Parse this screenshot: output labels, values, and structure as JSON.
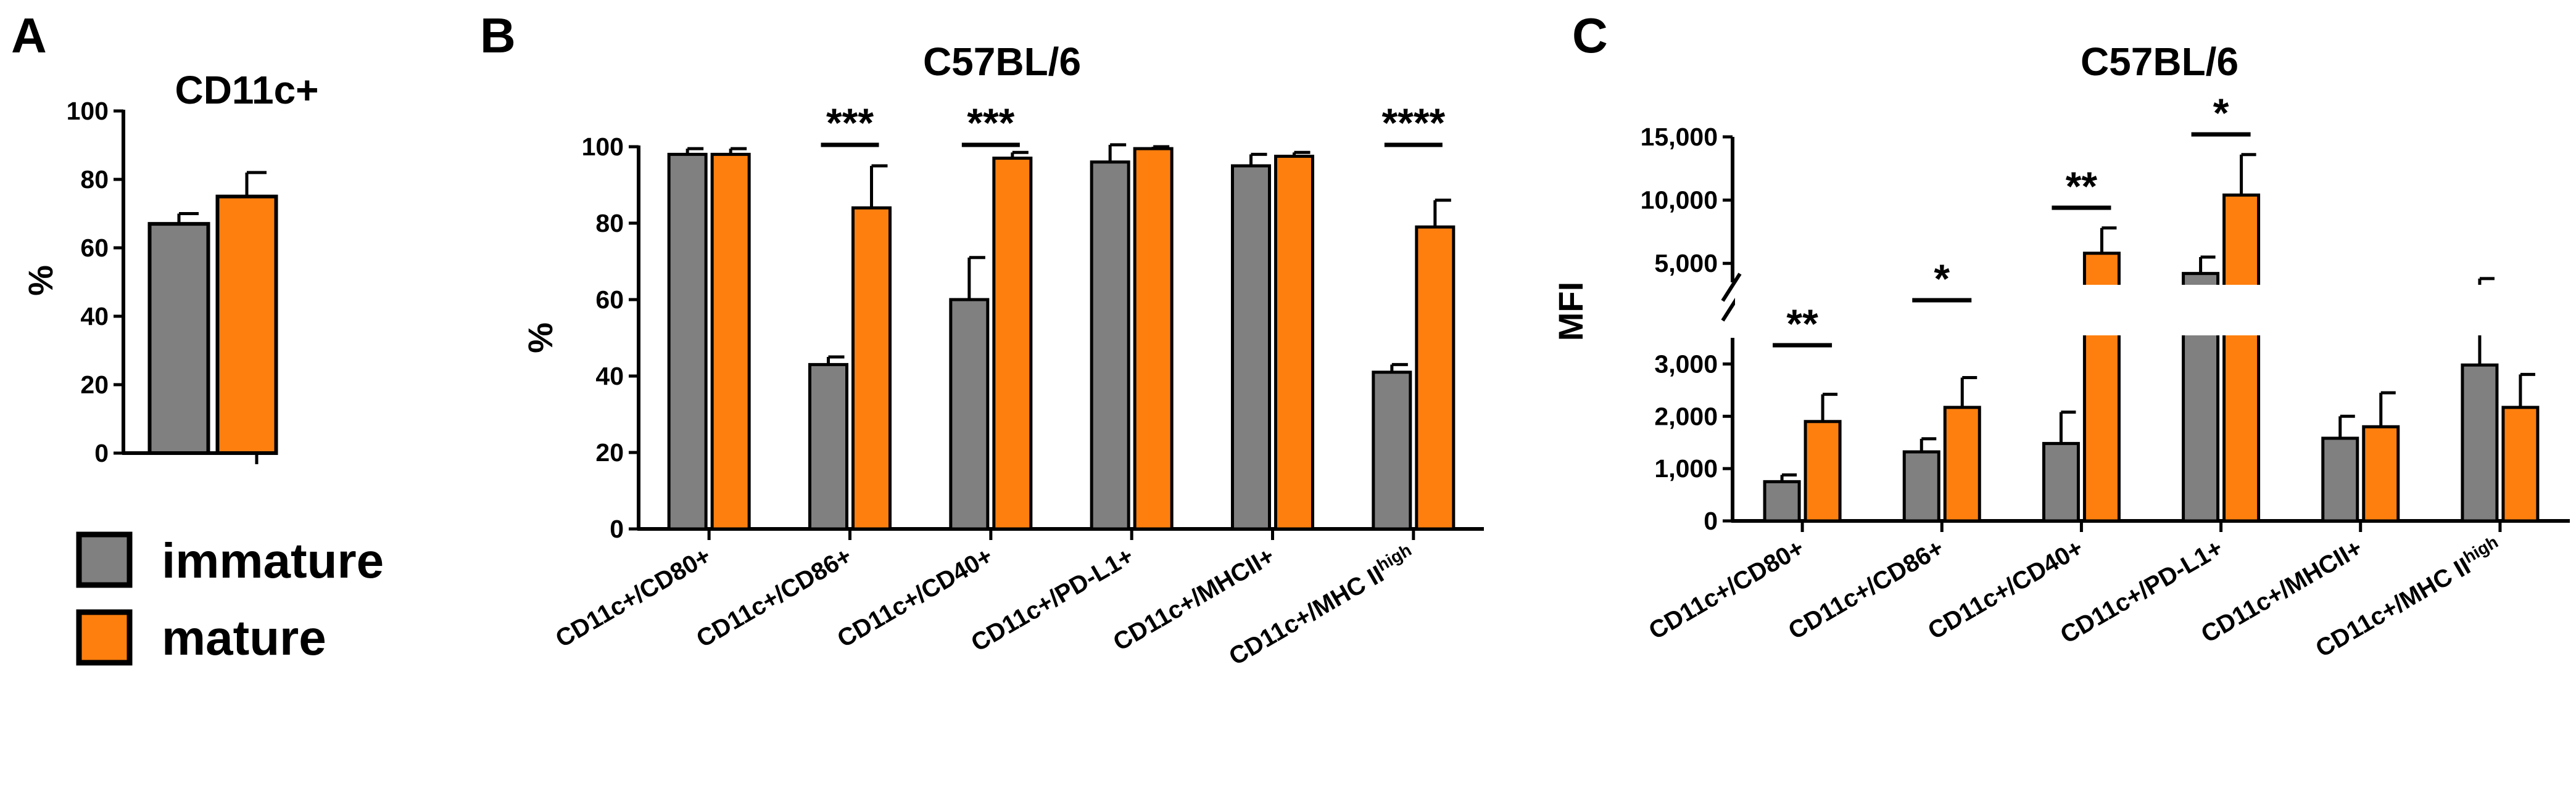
{
  "panel_labels": [
    "A",
    "B",
    "C"
  ],
  "legend": [
    {
      "label": "immature",
      "color": "#808080"
    },
    {
      "label": "mature",
      "color": "#ff7f0e"
    }
  ],
  "chart_data": [
    {
      "id": "A",
      "type": "bar",
      "title": "CD11c+",
      "ylabel": "%",
      "ylim": [
        0,
        100
      ],
      "yticks": [
        0,
        20,
        40,
        60,
        80,
        100
      ],
      "categories": [
        ""
      ],
      "series": [
        {
          "name": "immature",
          "values": [
            67
          ],
          "errors": [
            3
          ],
          "color": "#808080"
        },
        {
          "name": "mature",
          "values": [
            75
          ],
          "errors": [
            7
          ],
          "color": "#ff7f0e"
        }
      ]
    },
    {
      "id": "B",
      "type": "bar",
      "title": "C57BL/6",
      "ylabel": "%",
      "ylim": [
        0,
        100
      ],
      "yticks": [
        0,
        20,
        40,
        60,
        80,
        100
      ],
      "categories": [
        "CD11c+/CD80+",
        "CD11c+/CD86+",
        "CD11c+/CD40+",
        "CD11c+/PD-L1+",
        "CD11c+/MHCII+",
        "CD11c+/MHC II"
      ],
      "category_superscripts": [
        "",
        "",
        "",
        "",
        "",
        "high"
      ],
      "series": [
        {
          "name": "immature",
          "values": [
            98,
            43,
            60,
            96,
            95,
            41
          ],
          "errors": [
            1.5,
            2,
            11,
            4.5,
            3,
            2
          ],
          "color": "#808080"
        },
        {
          "name": "mature",
          "values": [
            98,
            84,
            97,
            99.5,
            97.5,
            79
          ],
          "errors": [
            1.5,
            11,
            1.5,
            0.5,
            1,
            7
          ],
          "color": "#ff7f0e"
        }
      ],
      "significance": [
        {
          "category_index": 1,
          "label": "***"
        },
        {
          "category_index": 2,
          "label": "***"
        },
        {
          "category_index": 5,
          "label": "****"
        }
      ]
    },
    {
      "id": "C",
      "type": "bar",
      "title": "C57BL/6",
      "ylabel": "MFI",
      "axis_break": {
        "lower_max": 3500,
        "upper_min": 3500,
        "upper_max": 15000
      },
      "yticks_lower": [
        {
          "v": 0,
          "label": "0"
        },
        {
          "v": 1000,
          "label": "1,000"
        },
        {
          "v": 2000,
          "label": "2,000"
        },
        {
          "v": 3000,
          "label": "3,000"
        }
      ],
      "yticks_upper": [
        {
          "v": 5000,
          "label": "5,000"
        },
        {
          "v": 10000,
          "label": "10,000"
        },
        {
          "v": 15000,
          "label": "15,000"
        }
      ],
      "categories": [
        "CD11c+/CD80+",
        "CD11c+/CD86+",
        "CD11c+/CD40+",
        "CD11c+/PD-L1+",
        "CD11c+/MHCII+",
        "CD11c+/MHC II"
      ],
      "category_superscripts": [
        "",
        "",
        "",
        "",
        "",
        "high"
      ],
      "series": [
        {
          "name": "immature",
          "values": [
            750,
            1320,
            1480,
            4200,
            1580,
            2980
          ],
          "errors": [
            130,
            250,
            600,
            1300,
            420,
            820
          ],
          "color": "#808080"
        },
        {
          "name": "mature",
          "values": [
            1900,
            2170,
            5800,
            10400,
            1800,
            2170
          ],
          "errors": [
            520,
            570,
            2000,
            3200,
            650,
            630
          ],
          "color": "#ff7f0e"
        }
      ],
      "significance": [
        {
          "category_index": 0,
          "label": "**"
        },
        {
          "category_index": 1,
          "label": "*"
        },
        {
          "category_index": 2,
          "label": "**"
        },
        {
          "category_index": 3,
          "label": "*"
        }
      ]
    }
  ]
}
